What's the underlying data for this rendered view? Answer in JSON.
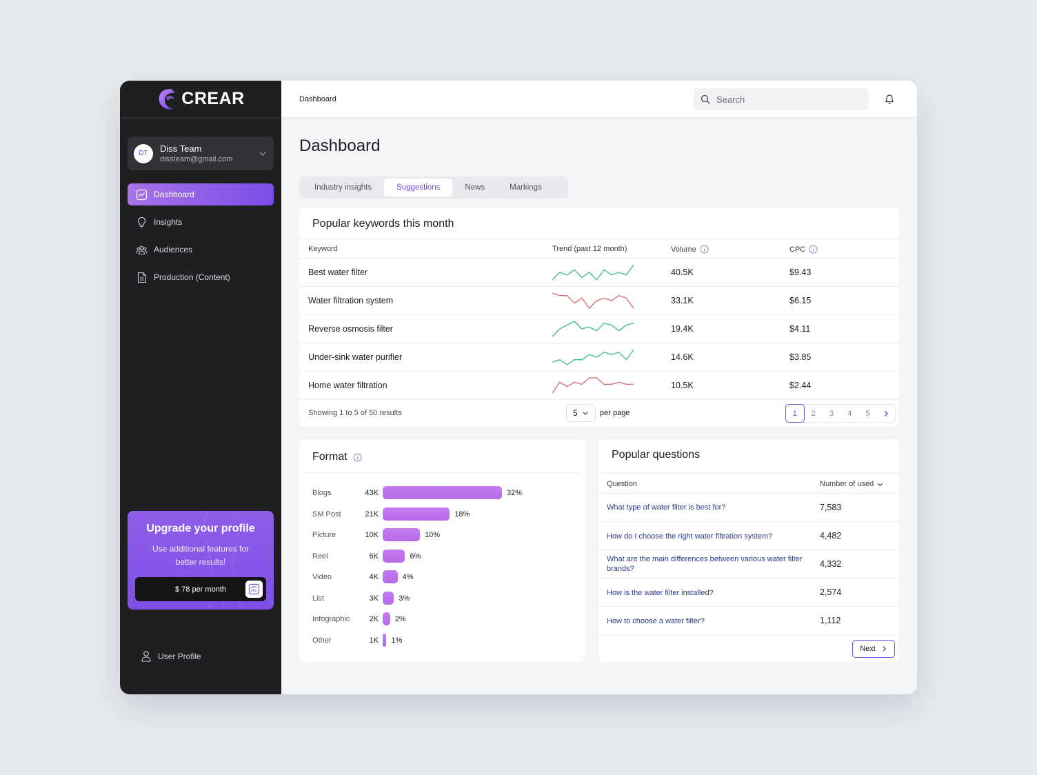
{
  "brand": {
    "name": "CREAR",
    "logo_icon": "crear-logo-icon",
    "accent": "#8b5cf6"
  },
  "account": {
    "initials": "DT",
    "name": "Diss Team",
    "email": "dissteam@gmail.com"
  },
  "nav": {
    "items": [
      {
        "label": "Dashboard",
        "icon": "chart-icon",
        "active": true
      },
      {
        "label": "Insights",
        "icon": "lightbulb-icon",
        "active": false
      },
      {
        "label": "Audiences",
        "icon": "users-icon",
        "active": false
      },
      {
        "label": "Production (Content)",
        "icon": "document-icon",
        "active": false
      }
    ]
  },
  "upgrade": {
    "title": "Upgrade  your profile",
    "text": "Use additional features for better results!",
    "price_label": "$ 78 per month"
  },
  "user_profile": {
    "label": "User Profile"
  },
  "header": {
    "breadcrumb": "Dashboard",
    "search_placeholder": "Search"
  },
  "page": {
    "title": "Dashboard"
  },
  "tabs": [
    {
      "label": "Industry insights",
      "active": false
    },
    {
      "label": "Suggestions",
      "active": true
    },
    {
      "label": "News",
      "active": false
    },
    {
      "label": "Markings",
      "active": false
    }
  ],
  "keywords": {
    "title": "Popular keywords this month",
    "columns": {
      "keyword": "Keyword",
      "trend": "Trend (past 12 month)",
      "volume": "Volume",
      "cpc": "CPC"
    },
    "rows": [
      {
        "keyword": "Best water filter",
        "volume": "40.5K",
        "cpc": "$9.43",
        "trend_color": "#3dbb84",
        "trend": [
          3,
          6,
          5,
          7,
          4,
          6,
          3,
          7,
          5,
          6,
          5,
          9
        ]
      },
      {
        "keyword": "Water filtration system",
        "volume": "33.1K",
        "cpc": "$6.15",
        "trend_color": "#d86a6a",
        "trend": [
          9,
          8,
          8,
          5,
          7,
          3,
          6,
          7,
          6,
          8,
          7,
          3
        ]
      },
      {
        "keyword": "Reverse osmosis filter",
        "volume": "19.4K",
        "cpc": "$4.11",
        "trend_color": "#3dbb84",
        "trend": [
          1,
          5,
          7,
          9,
          5,
          6,
          4,
          8,
          7,
          4,
          7,
          8
        ]
      },
      {
        "keyword": "Under-sink water purifier",
        "volume": "14.6K",
        "cpc": "$3.85",
        "trend_color": "#3dbb84",
        "trend": [
          3,
          4,
          2,
          4,
          4,
          6,
          5,
          7,
          6,
          7,
          4,
          8
        ]
      },
      {
        "keyword": "Home water filtration",
        "volume": "10.5K",
        "cpc": "$2.44",
        "trend_color": "#d86a6a",
        "trend": [
          1,
          6,
          4,
          6,
          5,
          8,
          8,
          5,
          5,
          6,
          5,
          5
        ]
      }
    ],
    "footer": {
      "showing": "Showing 1 to 5 of 50 results",
      "per_page_value": "5",
      "per_page_label": "per page",
      "pages": [
        "1",
        "2",
        "3",
        "4",
        "5"
      ],
      "current_page": 1
    }
  },
  "format": {
    "title": "Format",
    "rows": [
      {
        "label": "Blogs",
        "value": "43K",
        "percent": 32,
        "pct_label": "32%"
      },
      {
        "label": "SM Post",
        "value": "21K",
        "percent": 18,
        "pct_label": "18%"
      },
      {
        "label": "Picture",
        "value": "10K",
        "percent": 10,
        "pct_label": "10%"
      },
      {
        "label": "Reel",
        "value": "6K",
        "percent": 6,
        "pct_label": "6%"
      },
      {
        "label": "Video",
        "value": "4K",
        "percent": 4,
        "pct_label": "4%"
      },
      {
        "label": "List",
        "value": "3K",
        "percent": 3,
        "pct_label": "3%"
      },
      {
        "label": "Infographic",
        "value": "2K",
        "percent": 2,
        "pct_label": "2%"
      },
      {
        "label": "Other",
        "value": "1K",
        "percent": 1,
        "pct_label": "1%"
      }
    ]
  },
  "questions": {
    "title": "Popular questions",
    "columns": {
      "question": "Question",
      "count": "Number of used"
    },
    "rows": [
      {
        "question": "What type of water filter is best for?",
        "count": "7,583"
      },
      {
        "question": "How do I choose the right water filtration system?",
        "count": "4,482"
      },
      {
        "question": "What are the main differences between various water filter brands?",
        "count": "4,332"
      },
      {
        "question": "How is the water filter installed?",
        "count": "2,574"
      },
      {
        "question": "How to choose a water filter?",
        "count": "1,112"
      }
    ],
    "next_label": "Next"
  }
}
